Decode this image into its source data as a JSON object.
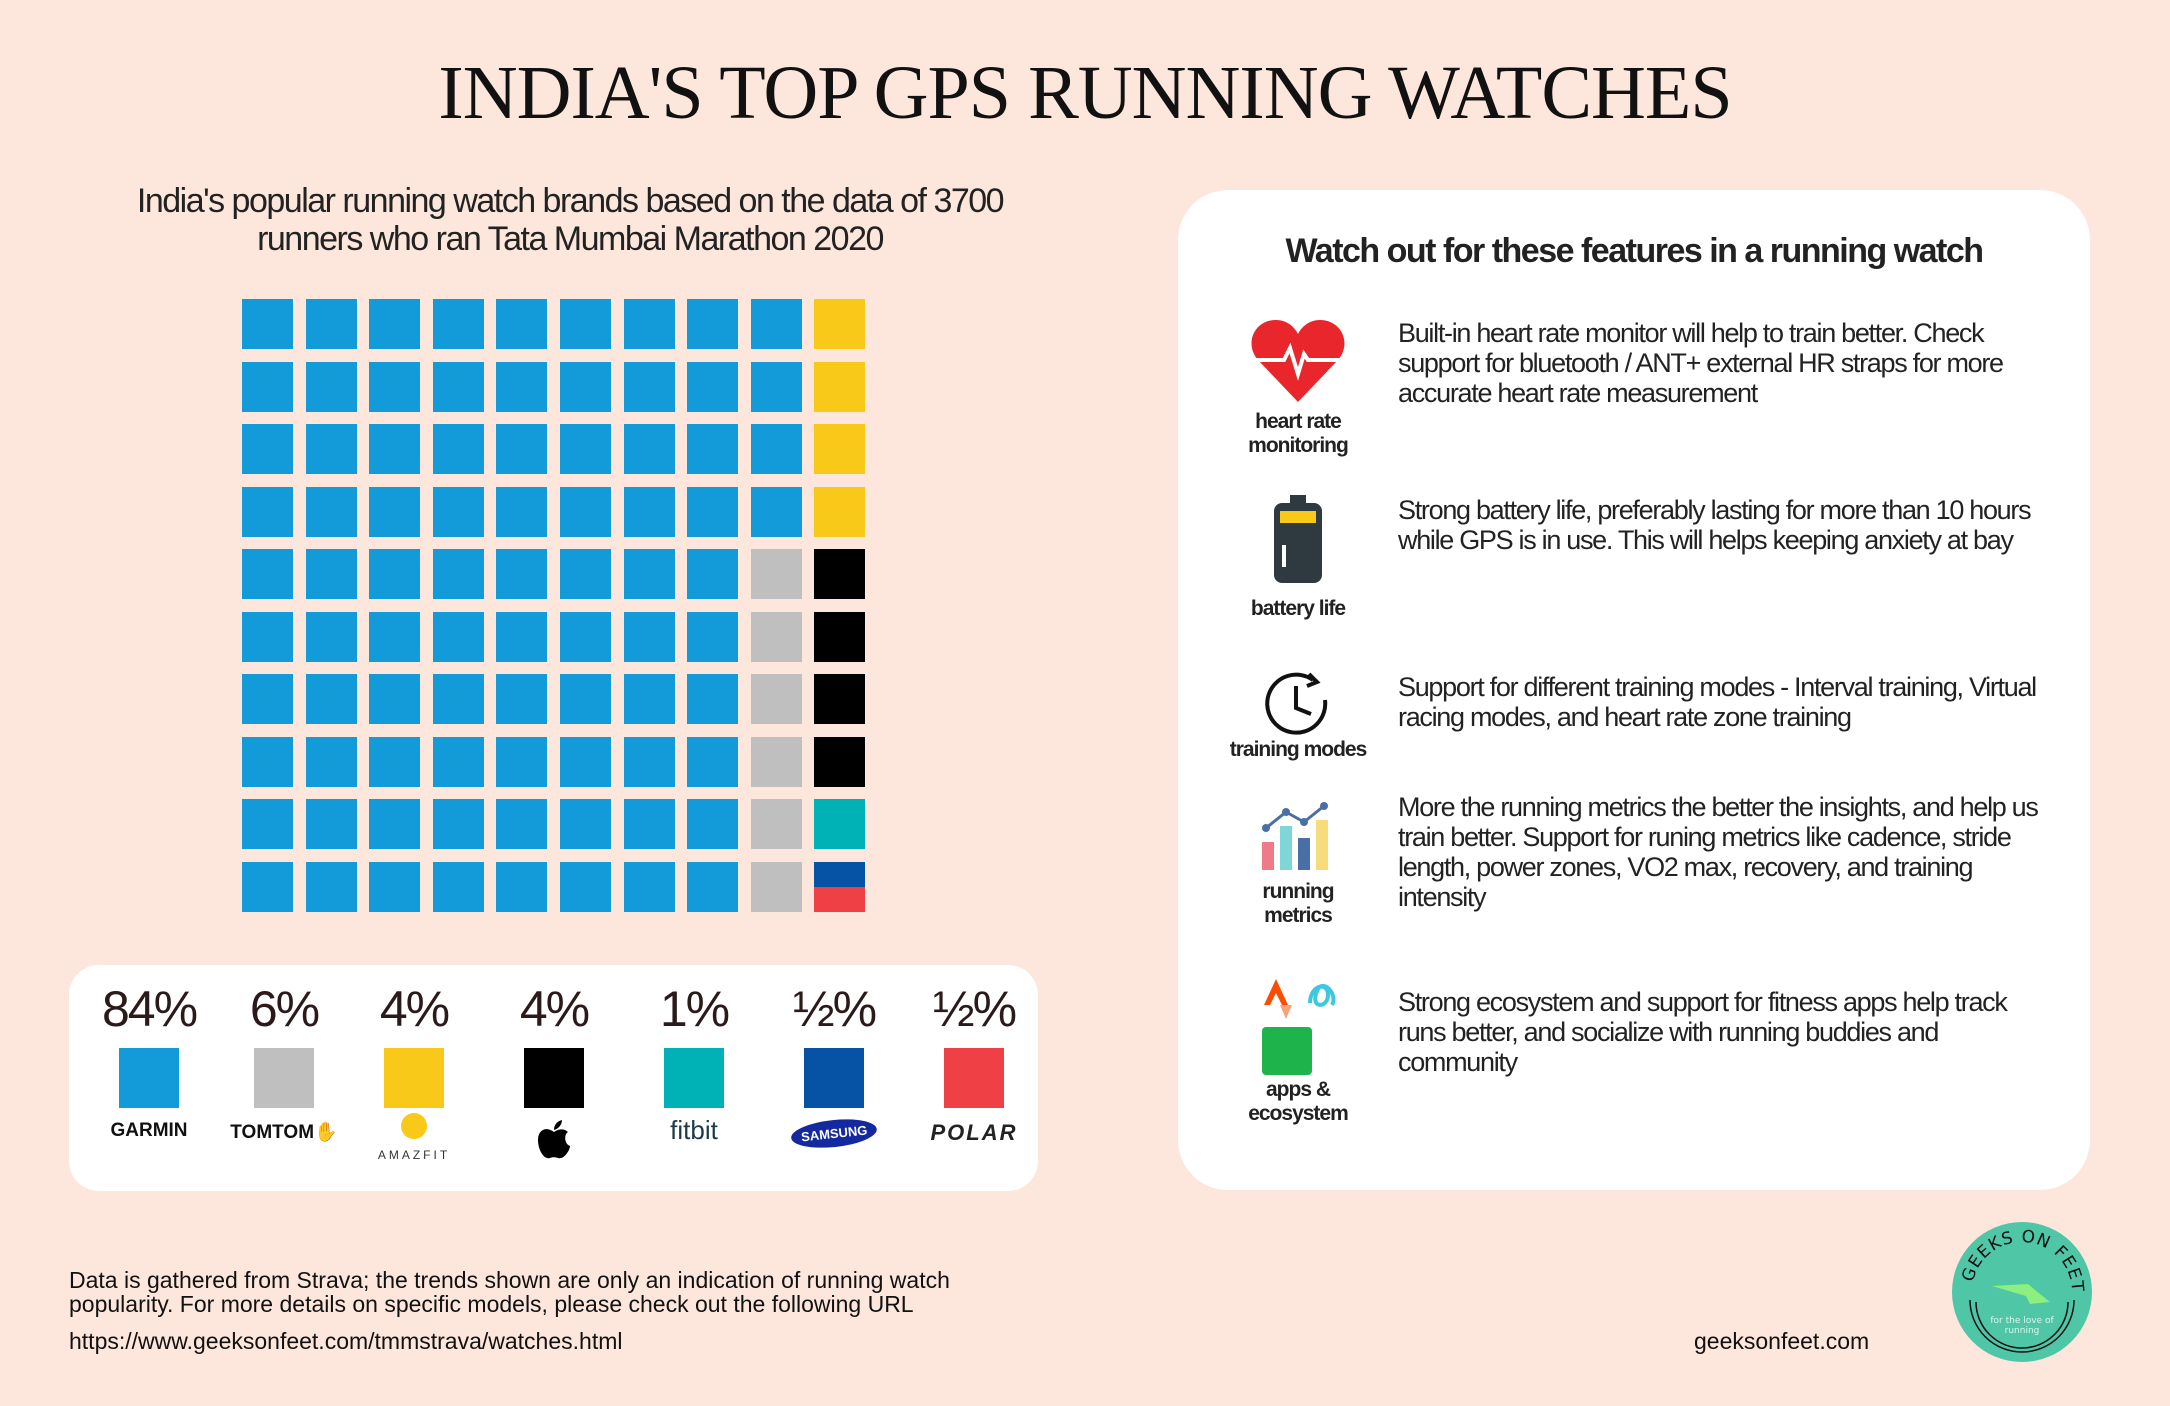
{
  "title": "INDIA'S TOP GPS RUNNING WATCHES",
  "subtitle_line1": "India's popular running watch brands based on the data of 3700",
  "subtitle_line2": "runners who ran Tata Mumbai Marathon 2020",
  "chart_data": {
    "type": "waffle",
    "grid": "10x10",
    "categories": [
      "Garmin",
      "TomTom",
      "Amazfit",
      "Apple",
      "Fitbit",
      "Samsung",
      "Polar"
    ],
    "values": [
      84,
      6,
      4,
      4,
      1,
      0.5,
      0.5
    ],
    "labels": [
      "84%",
      "6%",
      "4%",
      "4%",
      "1%",
      "½%",
      "½%"
    ],
    "colors": [
      "#129bd8",
      "#bfbfbf",
      "#f8c918",
      "#000000",
      "#00b1b6",
      "#0652a5",
      "#ef4145"
    ]
  },
  "legend_logos": [
    "GARMIN",
    "TOMTOM",
    "AMAZFIT",
    "",
    "fitbit",
    "SAMSUNG",
    "POLAR"
  ],
  "panel": {
    "heading": "Watch out for these features  in a running watch",
    "features": [
      {
        "icon": "heart-rate-icon",
        "label": "heart rate monitoring",
        "text": "Built-in heart rate monitor will help to train better. Check support for bluetooth / ANT+ external HR straps for more accurate heart rate measurement"
      },
      {
        "icon": "battery-icon",
        "label": "battery life",
        "text": "Strong battery life,  preferably lasting for more than 10 hours while GPS is in use.  This will  helps keeping anxiety at bay"
      },
      {
        "icon": "clock-icon",
        "label": "training modes",
        "text": "Support for different training modes - Interval training, Virtual racing modes, and heart rate zone training"
      },
      {
        "icon": "bar-chart-icon",
        "label": "running metrics",
        "text": "More the running metrics the better the insights, and help us train better.  Support for runing metrics like cadence, stride length, power zones, VO2 max, recovery, and training intensity"
      },
      {
        "icon": "apps-icon",
        "label": "apps & ecosystem",
        "text": "Strong ecosystem and support for fitness apps help track runs better, and socialize with running buddies and community"
      }
    ]
  },
  "footer": {
    "line1": "Data is gathered from Strava; the trends shown are only an indication of running watch",
    "line2": " popularity. For more details on specific models, please check out the following URL",
    "url": "https://www.geeksonfeet.com/tmmstrava/watches.html",
    "site": "geeksonfeet.com"
  },
  "badge": {
    "title": "GEEKS ON FEET",
    "tagline": "for the love of running",
    "color": "#4fc6a5"
  }
}
